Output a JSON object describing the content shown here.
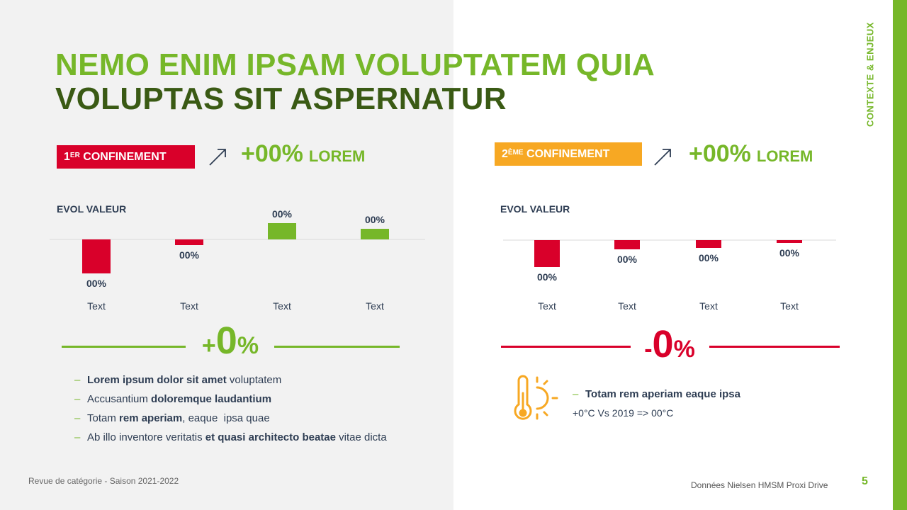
{
  "side_label": "CONTEXTE & ENJEUX",
  "title": {
    "line1": "NEMO ENIM IPSAM VOLUPTATEM QUIA",
    "line2": "VOLUPTAS SIT ASPERNATUR"
  },
  "panel1": {
    "badge_prefix": "1",
    "badge_sup": "ER",
    "badge_text": " CONFINEMENT",
    "big_pct": "+00%",
    "big_label": "LOREM",
    "evol_label": "EVOL VALEUR",
    "result_sign": "+",
    "result_num": "0",
    "result_unit": "%",
    "bullets": [
      {
        "bold": "Lorem ipsum dolor sit amet",
        "rest": " voluptatem"
      },
      {
        "pre": "Accusantium ",
        "bold": "doloremque laudantium"
      },
      {
        "pre": "Totam ",
        "bold": "rem aperiam",
        "rest": ", eaque  ipsa quae"
      },
      {
        "pre": "Ab illo inventore veritatis ",
        "bold": "et quasi architecto beatae",
        "rest": " vitae dicta"
      }
    ]
  },
  "panel2": {
    "badge_prefix": "2",
    "badge_sup": "ÈME",
    "badge_text": " CONFINEMENT",
    "big_pct": "+00%",
    "big_label": "LOREM",
    "evol_label": "EVOL VALEUR",
    "result_sign": "-",
    "result_num": "0",
    "result_unit": "%",
    "temp_bullet": "Totam rem aperiam eaque ipsa",
    "temp_compare": "+0°C Vs 2019 => 00°C"
  },
  "chart_data": [
    {
      "type": "bar",
      "categories": [
        "Text",
        "Text",
        "Text",
        "Text"
      ],
      "values": [
        -0.48,
        -0.08,
        0.23,
        0.15
      ],
      "data_labels": [
        "00%",
        "00%",
        "00%",
        "00%"
      ],
      "colors": [
        "#d9002a",
        "#d9002a",
        "#76b729",
        "#76b729"
      ],
      "ylim": [
        -0.6,
        0.6
      ]
    },
    {
      "type": "bar",
      "categories": [
        "Text",
        "Text",
        "Text",
        "Text"
      ],
      "values": [
        -0.38,
        -0.13,
        -0.11,
        -0.04
      ],
      "data_labels": [
        "00%",
        "00%",
        "00%",
        "00%"
      ],
      "colors": [
        "#d9002a",
        "#d9002a",
        "#d9002a",
        "#d9002a"
      ],
      "ylim": [
        -0.6,
        0.6
      ]
    }
  ],
  "footer": {
    "left": "Revue de catégorie - Saison 2021-2022",
    "right": "Données Nielsen HMSM Proxi Drive",
    "page": "5"
  },
  "colors": {
    "green": "#76b729",
    "dark_green": "#3a5a14",
    "red": "#d9002a",
    "orange": "#f7a823",
    "text": "#2e3d53"
  }
}
